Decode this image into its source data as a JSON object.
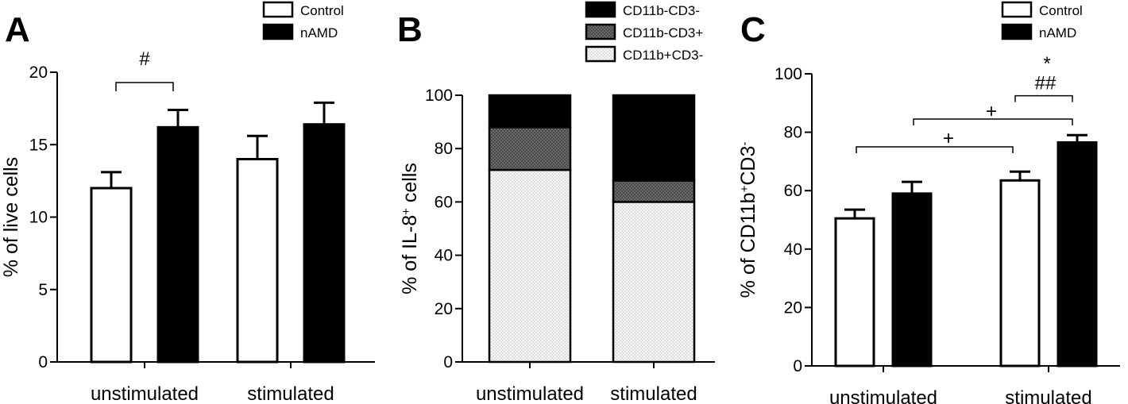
{
  "figure": {
    "panels": [
      {
        "letter": "A"
      },
      {
        "letter": "B"
      },
      {
        "letter": "C"
      }
    ]
  },
  "chart_data": [
    {
      "type": "bar",
      "panel": "A",
      "categories": [
        "unstimulated",
        "stimulated"
      ],
      "series": [
        {
          "name": "Control",
          "values": [
            12.0,
            14.0
          ],
          "errors": [
            1.1,
            1.6
          ],
          "color": "#ffffff"
        },
        {
          "name": "nAMD",
          "values": [
            16.2,
            16.4
          ],
          "errors": [
            1.2,
            1.5
          ],
          "color": "#000000"
        }
      ],
      "ylabel": "% of live cells",
      "ylim": [
        0,
        20
      ],
      "yticks": [
        0,
        5,
        10,
        15,
        20
      ],
      "legend": "top-right",
      "annotations": [
        {
          "text": "#",
          "between": [
            "unstimulated:Control",
            "unstimulated:nAMD"
          ]
        }
      ]
    },
    {
      "type": "bar",
      "stacked": true,
      "panel": "B",
      "categories": [
        "unstimulated",
        "stimulated"
      ],
      "series": [
        {
          "name": "CD11b+CD3-",
          "values": [
            72,
            60
          ],
          "color": "#f2f2f2",
          "pattern": "light-dots"
        },
        {
          "name": "CD11b-CD3+",
          "values": [
            16,
            8
          ],
          "color": "#555555",
          "pattern": "dark-dots"
        },
        {
          "name": "CD11b-CD3-",
          "values": [
            12,
            32
          ],
          "color": "#000000",
          "pattern": "solid"
        }
      ],
      "ylabel_parts": [
        "% of IL-8",
        "+",
        " cells"
      ],
      "ylim": [
        0,
        100
      ],
      "yticks": [
        0,
        20,
        40,
        60,
        80,
        100
      ],
      "legend": "top-right",
      "legend_order": [
        "CD11b-CD3-",
        "CD11b-CD3+",
        "CD11b+CD3-"
      ]
    },
    {
      "type": "bar",
      "panel": "C",
      "categories": [
        "unstimulated",
        "stimulated"
      ],
      "series": [
        {
          "name": "Control",
          "values": [
            50.5,
            63.5
          ],
          "errors": [
            3,
            3
          ],
          "color": "#ffffff"
        },
        {
          "name": "nAMD",
          "values": [
            59,
            76.5
          ],
          "errors": [
            4,
            2.5
          ],
          "color": "#000000"
        }
      ],
      "ylabel_parts": [
        "% of CD11b",
        "+",
        "CD3",
        "-"
      ],
      "ylim": [
        0,
        100
      ],
      "yticks": [
        0,
        20,
        40,
        60,
        80,
        100
      ],
      "legend": "top-right",
      "annotations": [
        {
          "text": "+",
          "between": [
            "unstimulated:Control",
            "stimulated:Control"
          ]
        },
        {
          "text": "+",
          "between": [
            "unstimulated:nAMD",
            "stimulated:nAMD"
          ]
        },
        {
          "text": "##",
          "between": [
            "stimulated:Control",
            "stimulated:nAMD"
          ]
        },
        {
          "text": "*",
          "between": [
            "stimulated:Control",
            "stimulated:nAMD"
          ]
        }
      ]
    }
  ]
}
